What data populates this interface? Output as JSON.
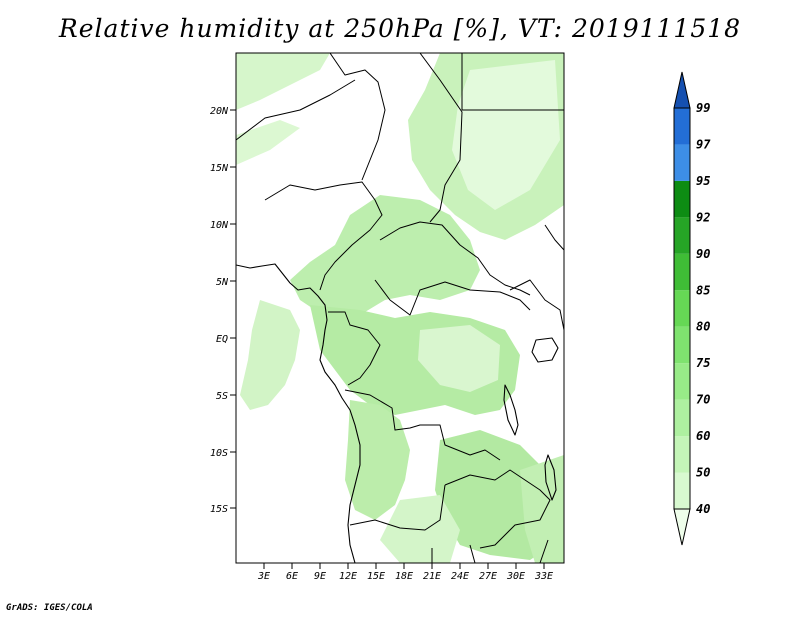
{
  "title": "Relative humidity at 250hPa [%], VT: 2019111518",
  "credit": "GrADS: IGES/COLA",
  "map": {
    "lat_labels": [
      "20N",
      "15N",
      "10N",
      "5N",
      "EQ",
      "5S",
      "10S",
      "15S"
    ],
    "lon_labels": [
      "3E",
      "6E",
      "9E",
      "12E",
      "15E",
      "18E",
      "21E",
      "24E",
      "27E",
      "30E",
      "33E"
    ]
  },
  "colorbar": {
    "levels": [
      "40",
      "50",
      "60",
      "70",
      "75",
      "80",
      "85",
      "90",
      "92",
      "95",
      "97",
      "99"
    ],
    "colors": [
      "#eefdea",
      "#d8f9d0",
      "#c4f5b8",
      "#aef0a0",
      "#98eb88",
      "#7fe36f",
      "#66d855",
      "#3fbd36",
      "#26a526",
      "#0d8c13",
      "#3d8ee6",
      "#236ed6",
      "#1550b0"
    ]
  },
  "legend_colors": {
    "shade_light": "#d9f7cf",
    "shade_mid": "#b7eea7",
    "shade_dark": "#9fe68d"
  }
}
